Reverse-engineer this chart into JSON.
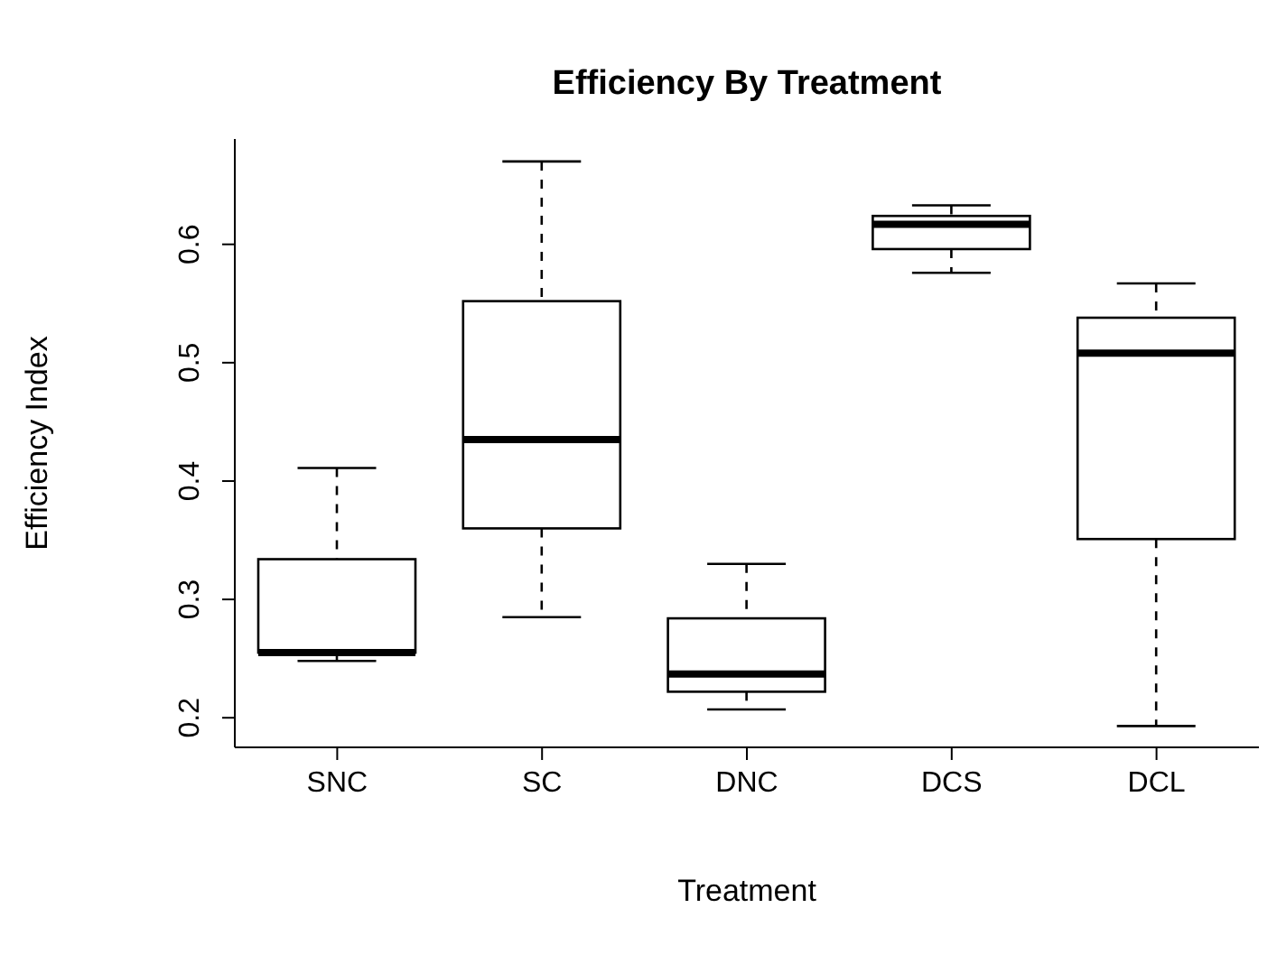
{
  "chart_data": {
    "type": "box",
    "title": "Efficiency By Treatment",
    "xlabel": "Treatment",
    "ylabel": "Efficiency Index",
    "categories": [
      "SNC",
      "SC",
      "DNC",
      "DCS",
      "DCL"
    ],
    "boxes": [
      {
        "low": 0.248,
        "q1": 0.255,
        "median": 0.255,
        "q3": 0.334,
        "high": 0.411
      },
      {
        "low": 0.285,
        "q1": 0.36,
        "median": 0.435,
        "q3": 0.552,
        "high": 0.67
      },
      {
        "low": 0.207,
        "q1": 0.222,
        "median": 0.237,
        "q3": 0.284,
        "high": 0.33
      },
      {
        "low": 0.576,
        "q1": 0.596,
        "median": 0.617,
        "q3": 0.624,
        "high": 0.633
      },
      {
        "low": 0.193,
        "q1": 0.351,
        "median": 0.508,
        "q3": 0.538,
        "high": 0.567
      }
    ],
    "color": "#000000",
    "ylim": [
      0.175,
      0.689
    ],
    "yticks": [
      0.2,
      0.3,
      0.4,
      0.5,
      0.6
    ]
  }
}
